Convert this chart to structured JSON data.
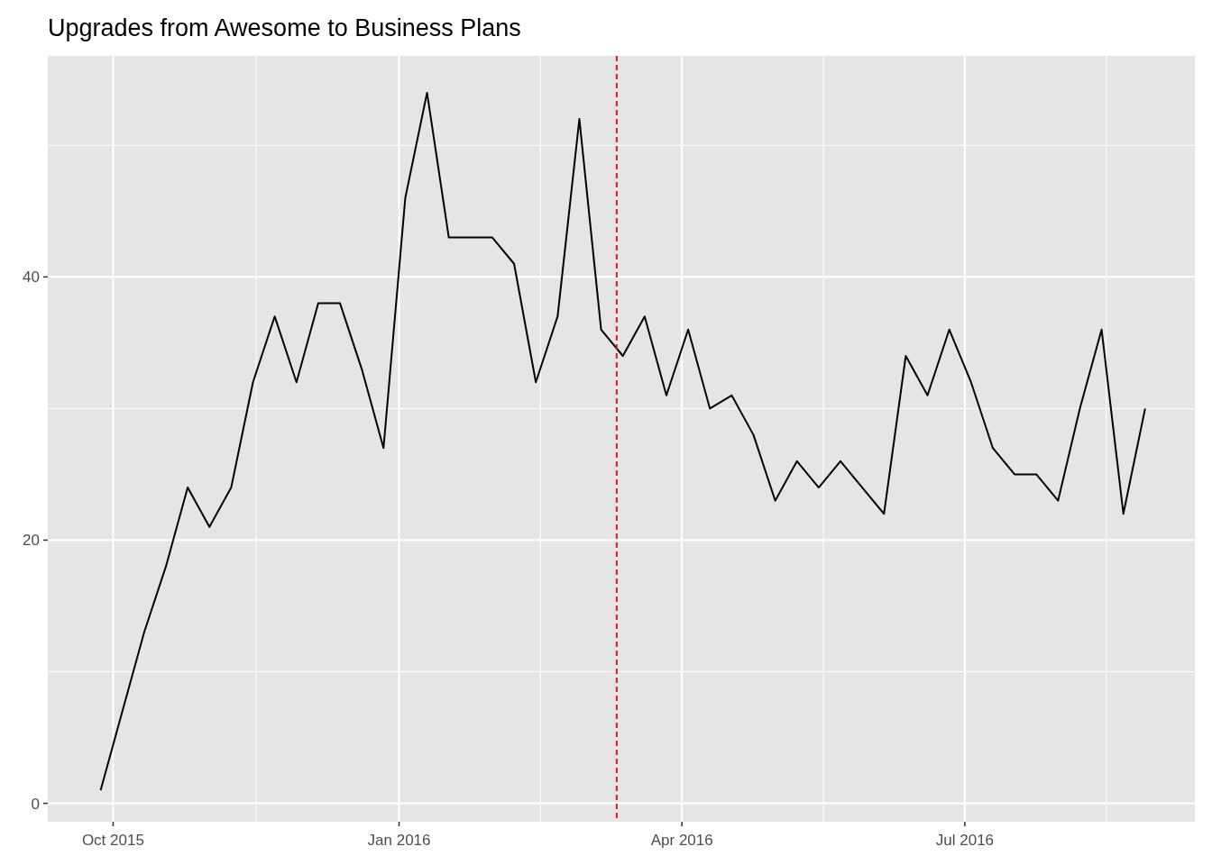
{
  "chart_data": {
    "type": "line",
    "title": "Upgrades from Awesome to Business Plans",
    "x": [
      "2015-09-27",
      "2015-10-04",
      "2015-10-11",
      "2015-10-18",
      "2015-10-25",
      "2015-11-01",
      "2015-11-08",
      "2015-11-15",
      "2015-11-22",
      "2015-11-29",
      "2015-12-06",
      "2015-12-13",
      "2015-12-20",
      "2015-12-27",
      "2016-01-03",
      "2016-01-10",
      "2016-01-17",
      "2016-01-24",
      "2016-01-31",
      "2016-02-07",
      "2016-02-14",
      "2016-02-21",
      "2016-02-28",
      "2016-03-06",
      "2016-03-13",
      "2016-03-20",
      "2016-03-27",
      "2016-04-03",
      "2016-04-10",
      "2016-04-17",
      "2016-04-24",
      "2016-05-01",
      "2016-05-08",
      "2016-05-15",
      "2016-05-22",
      "2016-05-29",
      "2016-06-05",
      "2016-06-12",
      "2016-06-19",
      "2016-06-26",
      "2016-07-03",
      "2016-07-10",
      "2016-07-17",
      "2016-07-24",
      "2016-07-31",
      "2016-08-07",
      "2016-08-14",
      "2016-08-21",
      "2016-08-28"
    ],
    "series": [
      {
        "color": "#000000",
        "values": [
          1,
          7,
          13,
          18,
          24,
          21,
          24,
          32,
          37,
          32,
          38,
          38,
          33,
          27,
          46,
          54,
          43,
          43,
          43,
          41,
          32,
          37,
          52,
          36,
          34,
          37,
          31,
          36,
          30,
          31,
          28,
          23,
          26,
          24,
          26,
          24,
          22,
          34,
          31,
          36,
          32,
          27,
          25,
          25,
          23,
          30,
          36,
          22,
          30
        ]
      }
    ],
    "xlim": [
      "2015-09-10",
      "2016-09-13"
    ],
    "xticks": [
      {
        "value": "2015-10-01",
        "label": "Oct 2015"
      },
      {
        "value": "2016-01-01",
        "label": "Jan 2016"
      },
      {
        "value": "2016-04-01",
        "label": "Apr 2016"
      },
      {
        "value": "2016-07-01",
        "label": "Jul 2016"
      }
    ],
    "ylim": [
      -1.4,
      56.8
    ],
    "yticks": [
      0,
      20,
      40
    ],
    "ref_lines": [
      {
        "axis": "x",
        "value": "2016-03-11",
        "color": "#dd1c1c",
        "line_style": "dashed"
      }
    ],
    "grid": true,
    "line_style": "solid",
    "marker": "none"
  }
}
